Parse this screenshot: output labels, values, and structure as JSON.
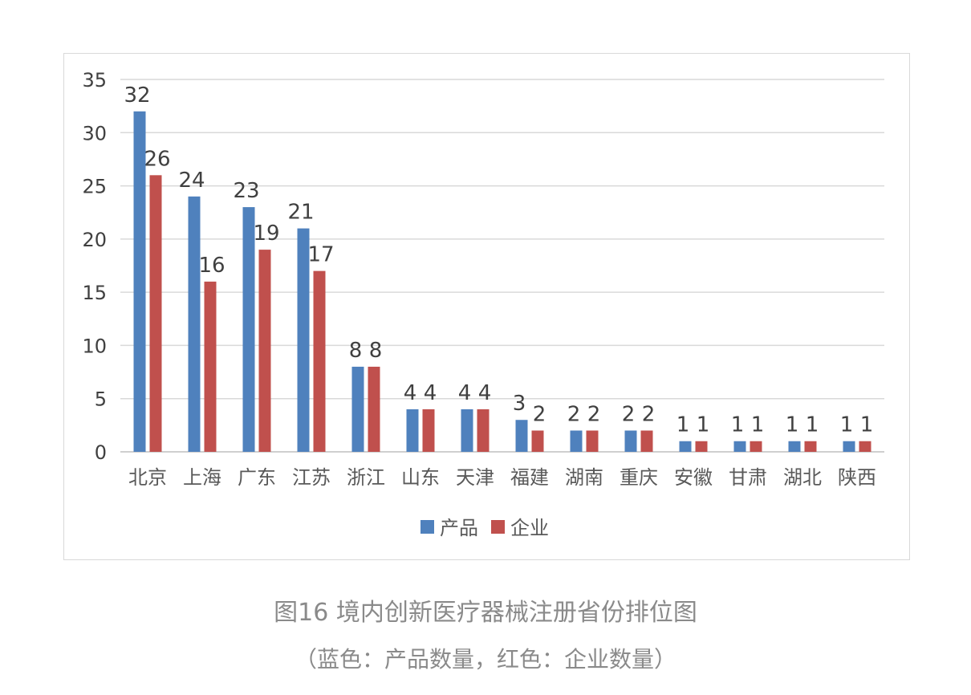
{
  "chart_data": {
    "type": "bar",
    "categories": [
      "北京",
      "上海",
      "广东",
      "江苏",
      "浙江",
      "山东",
      "天津",
      "福建",
      "湖南",
      "重庆",
      "安徽",
      "甘肃",
      "湖北",
      "陕西"
    ],
    "series": [
      {
        "name": "产品",
        "values": [
          32,
          24,
          23,
          21,
          8,
          4,
          4,
          3,
          2,
          2,
          1,
          1,
          1,
          1
        ],
        "color": "#4f81bd"
      },
      {
        "name": "企业",
        "values": [
          26,
          16,
          19,
          17,
          8,
          4,
          4,
          2,
          2,
          2,
          1,
          1,
          1,
          1
        ],
        "color": "#c0504d"
      }
    ],
    "yticks": [
      "0",
      "5",
      "10",
      "15",
      "20",
      "25",
      "30",
      "35"
    ],
    "ylim": [
      0,
      35
    ],
    "grid": true,
    "legend": "bottom",
    "data_labels": true
  },
  "caption": {
    "title": "图16 境内创新医疗器械注册省份排位图",
    "subtitle": "（蓝色：产品数量，红色：企业数量）"
  }
}
